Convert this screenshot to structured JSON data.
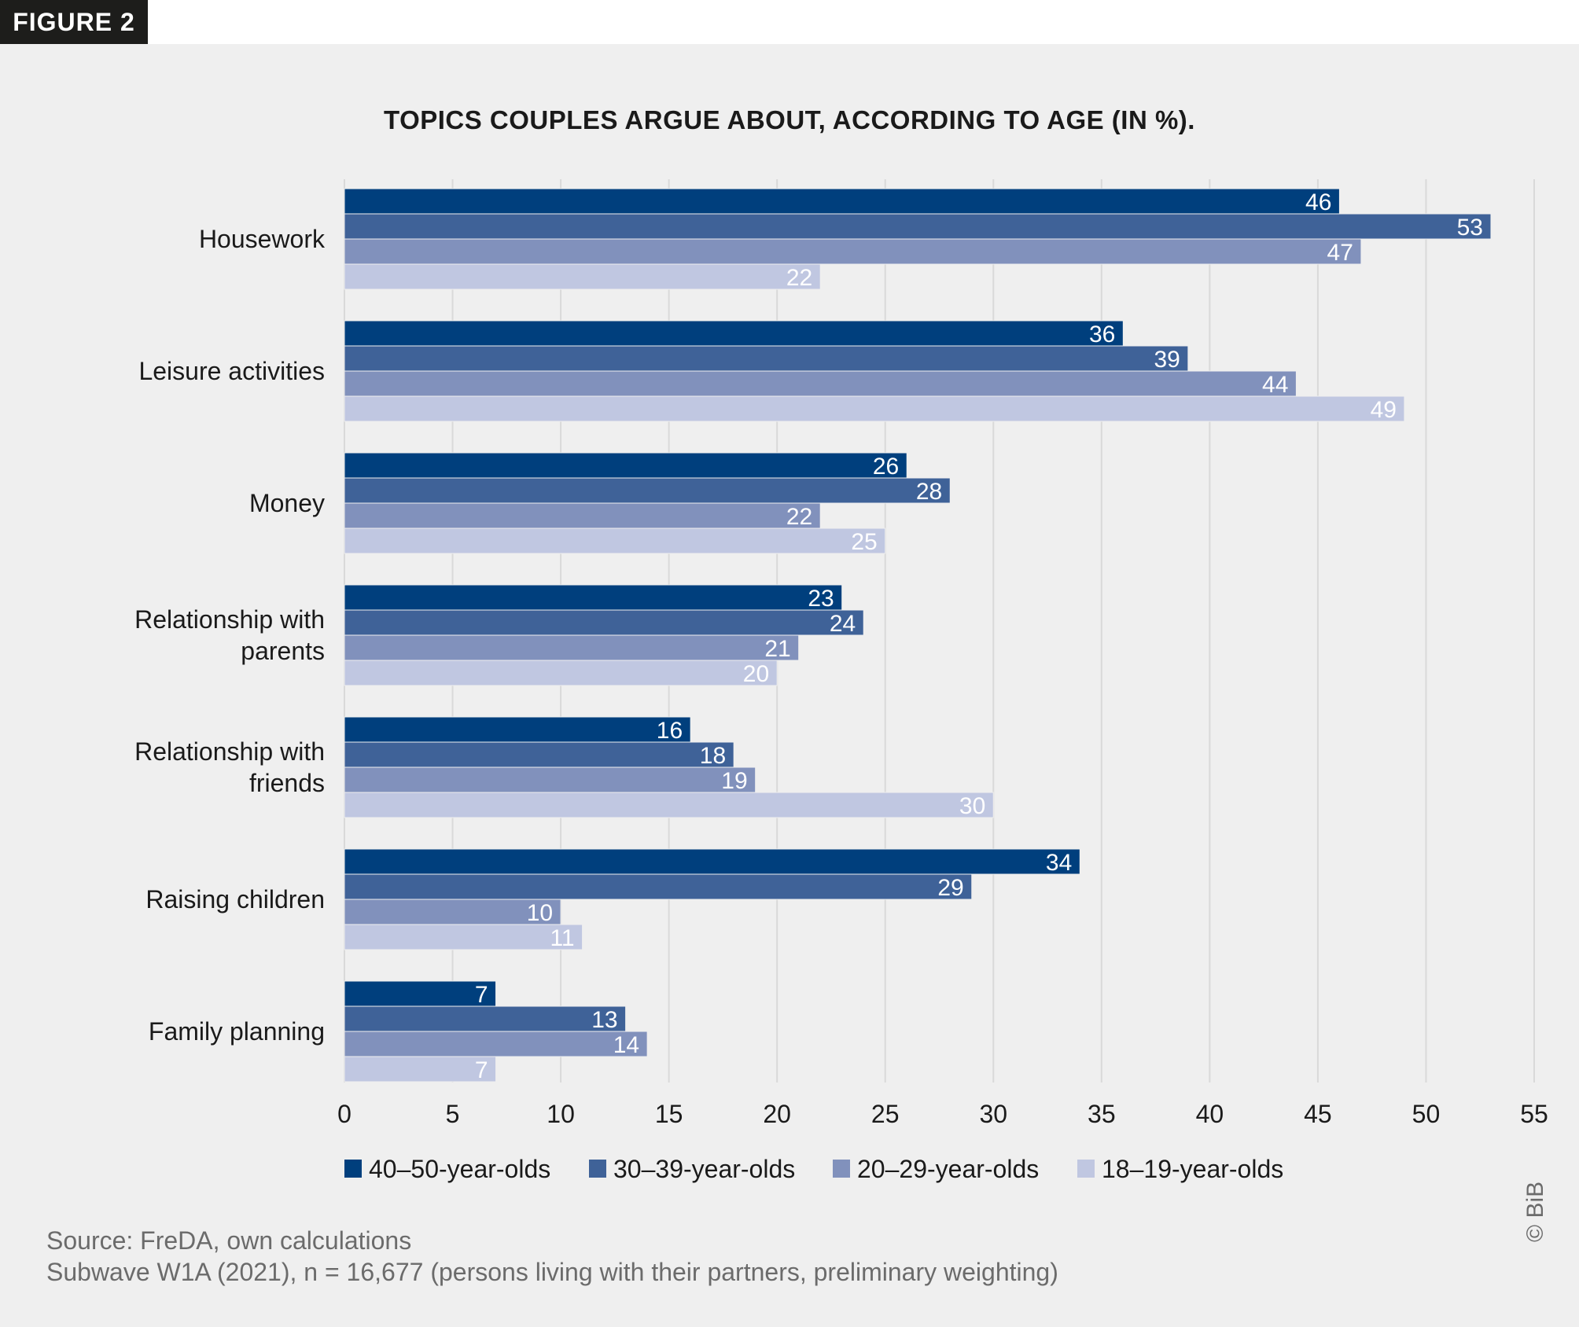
{
  "figure_label": "FIGURE 2",
  "copyright": "© BiB",
  "source_lines": [
    "Source: FreDA, own calculations",
    "Subwave W1A (2021), n = 16,677 (persons living with their partners, preliminary weighting)"
  ],
  "colors": {
    "background": "#efefef",
    "grid": "#d9d9d9"
  },
  "chart_data": {
    "type": "bar",
    "orientation": "horizontal",
    "title": "TOPICS COUPLES ARGUE ABOUT, ACCORDING TO AGE (IN %).",
    "categories": [
      "Housework",
      "Leisure activities",
      "Money",
      "Relationship with\nparents",
      "Relationship with\nfriends",
      "Raising children",
      "Family planning"
    ],
    "series": [
      {
        "name": "40–50-year-olds",
        "color": "#003f7d",
        "values": [
          46,
          36,
          26,
          23,
          16,
          34,
          7
        ]
      },
      {
        "name": "30–39-year-olds",
        "color": "#3f6298",
        "values": [
          53,
          39,
          28,
          24,
          18,
          29,
          13
        ]
      },
      {
        "name": "20–29-year-olds",
        "color": "#8191bc",
        "values": [
          47,
          44,
          22,
          21,
          19,
          10,
          14
        ]
      },
      {
        "name": "18–19-year-olds",
        "color": "#c0c7e1",
        "values": [
          22,
          49,
          25,
          20,
          30,
          11,
          7
        ]
      }
    ],
    "xlim": [
      0,
      55
    ],
    "xticks": [
      0,
      5,
      10,
      15,
      20,
      25,
      30,
      35,
      40,
      45,
      50,
      55
    ],
    "grid": true,
    "legend": "bottom",
    "data_labels": true
  }
}
